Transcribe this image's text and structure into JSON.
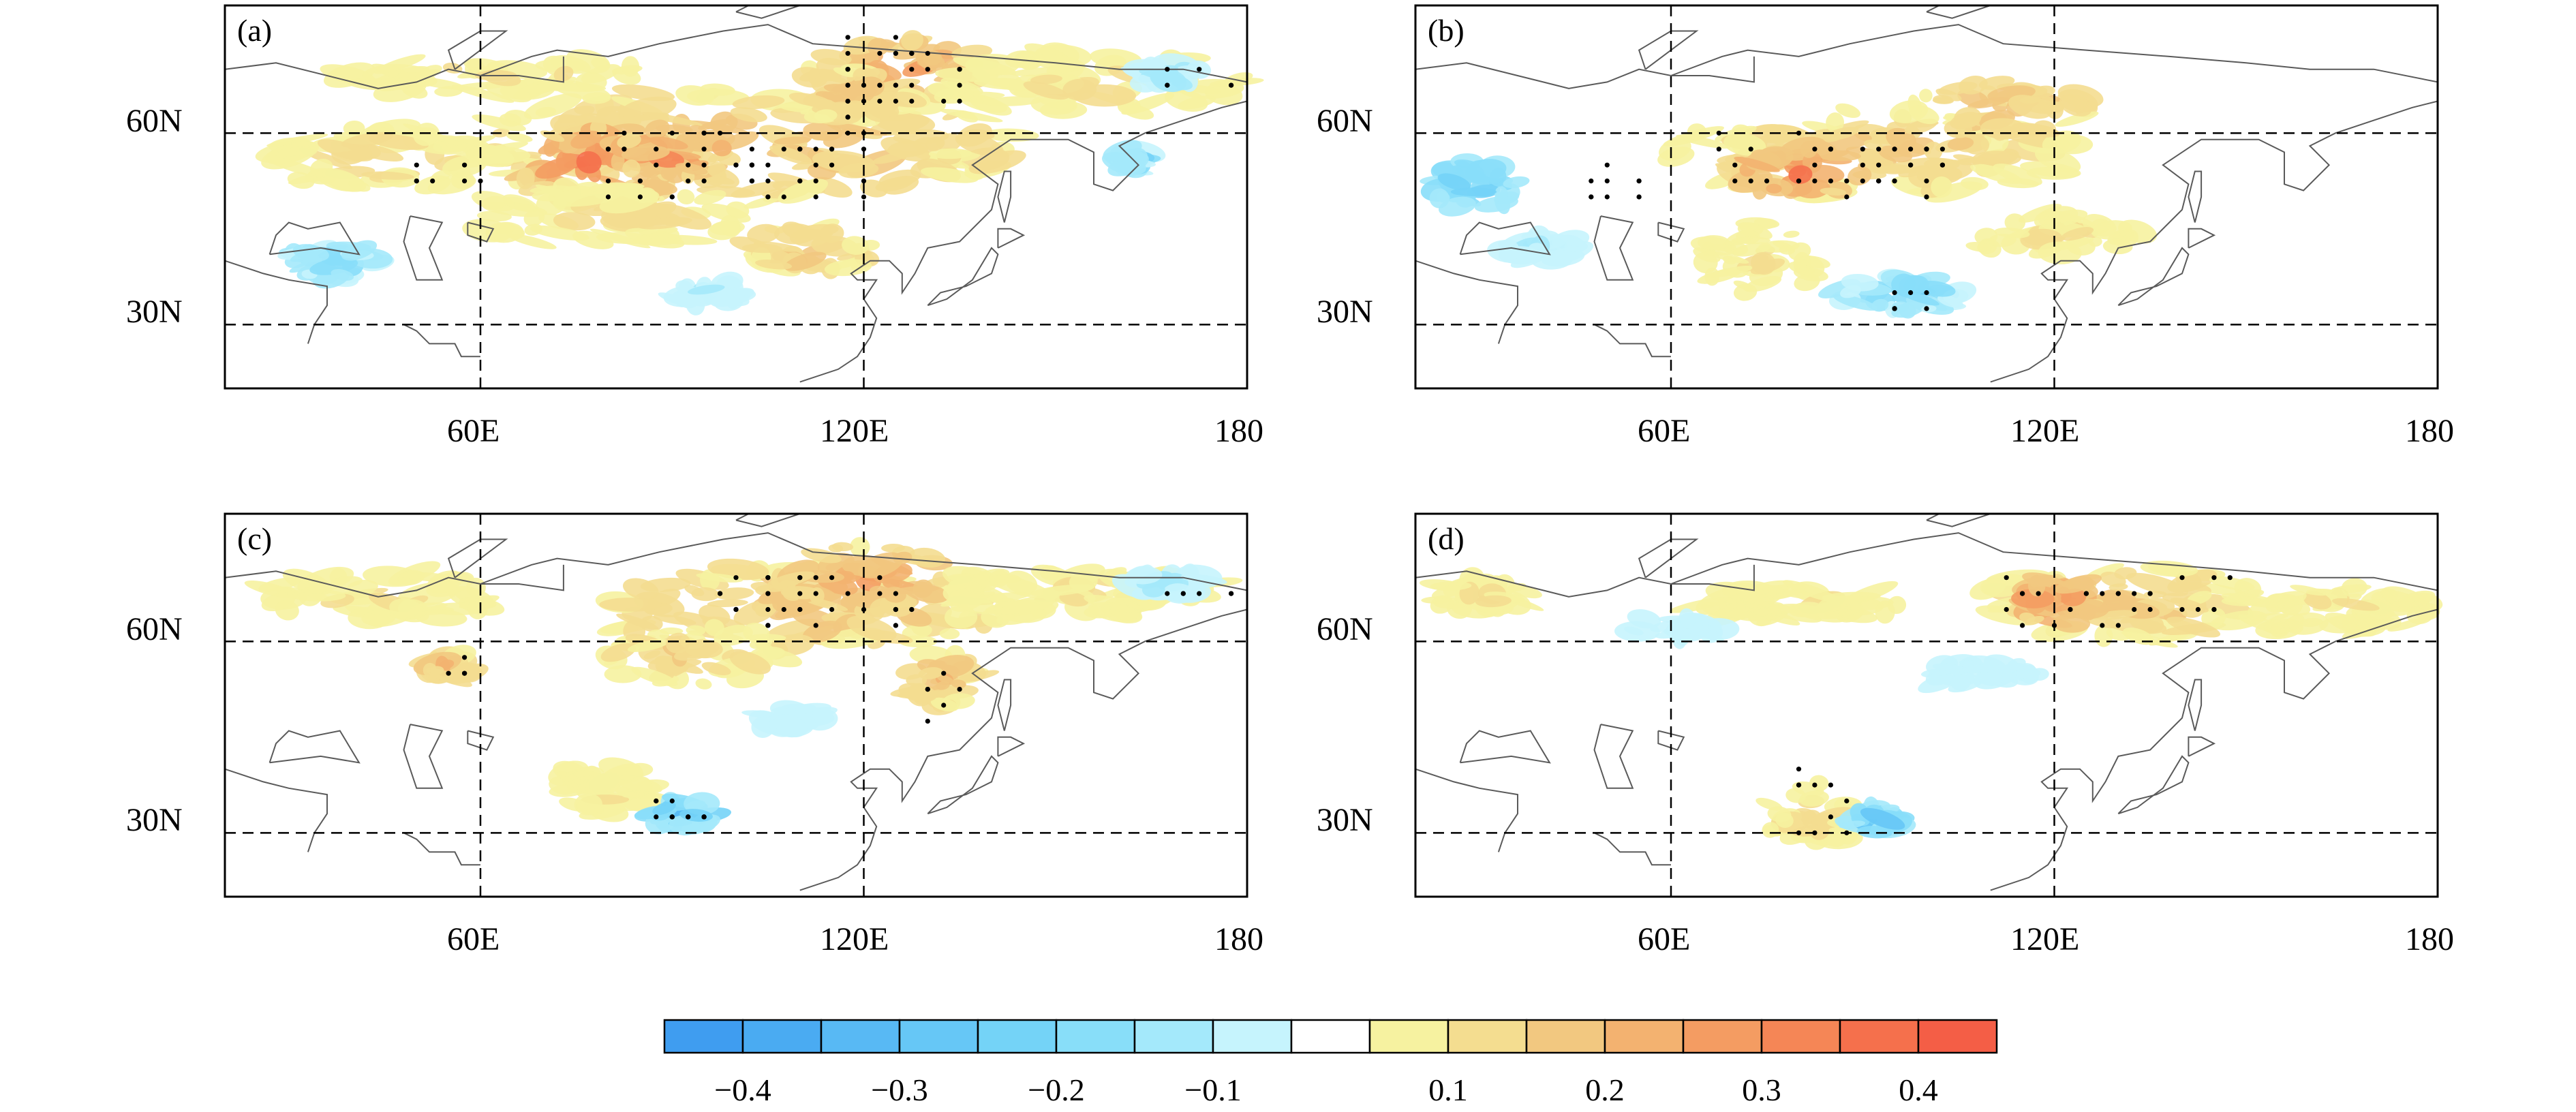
{
  "figure": {
    "type": "map-panels",
    "lat_range": [
      20,
      80
    ],
    "lon_range": [
      20,
      180
    ],
    "x_tick_labels": [
      "60E",
      "120E",
      "180"
    ],
    "y_tick_labels": [
      "60N",
      "30N"
    ]
  },
  "panels": [
    {
      "label": "(a)",
      "warm": [
        {
          "lon": 100,
          "lat": 58,
          "rl": 45,
          "rt": 9,
          "v": 0.2
        },
        {
          "lon": 78,
          "lat": 55,
          "rl": 12,
          "rt": 6,
          "v": 0.36
        },
        {
          "lon": 90,
          "lat": 57,
          "rl": 10,
          "rt": 4,
          "v": 0.33
        },
        {
          "lon": 125,
          "lat": 70,
          "rl": 14,
          "rt": 5,
          "v": 0.27
        },
        {
          "lon": 118,
          "lat": 66,
          "rl": 10,
          "rt": 4,
          "v": 0.22
        },
        {
          "lon": 80,
          "lat": 47,
          "rl": 22,
          "rt": 5,
          "v": 0.14
        },
        {
          "lon": 45,
          "lat": 56,
          "rl": 20,
          "rt": 5,
          "v": 0.14
        },
        {
          "lon": 155,
          "lat": 68,
          "rl": 25,
          "rt": 5,
          "v": 0.12
        },
        {
          "lon": 62,
          "lat": 69,
          "rl": 25,
          "rt": 3,
          "v": 0.12
        },
        {
          "lon": 112,
          "lat": 42,
          "rl": 10,
          "rt": 4,
          "v": 0.2
        }
      ],
      "cool": [
        {
          "lon": 37,
          "lat": 40,
          "rl": 7,
          "rt": 3,
          "v": -0.2
        },
        {
          "lon": 168,
          "lat": 69,
          "rl": 6,
          "rt": 2,
          "v": -0.15
        },
        {
          "lon": 162,
          "lat": 56,
          "rl": 2,
          "rt": 2,
          "v": -0.2
        },
        {
          "lon": 95,
          "lat": 35,
          "rl": 6,
          "rt": 2,
          "v": -0.12
        }
      ],
      "dots": [
        {
          "lon": 100,
          "lat": 55,
          "rl": 22,
          "rt": 5,
          "n": 55
        },
        {
          "lon": 125,
          "lat": 69,
          "rl": 10,
          "rt": 6,
          "n": 35
        },
        {
          "lon": 55,
          "lat": 53,
          "rl": 5,
          "rt": 2,
          "n": 7
        },
        {
          "lon": 172,
          "lat": 68,
          "rl": 6,
          "rt": 1,
          "n": 6
        }
      ]
    },
    {
      "label": "(b)",
      "warm": [
        {
          "lon": 92,
          "lat": 57,
          "rl": 32,
          "rt": 7,
          "v": 0.18
        },
        {
          "lon": 80,
          "lat": 54,
          "rl": 10,
          "rt": 4,
          "v": 0.34
        },
        {
          "lon": 112,
          "lat": 64,
          "rl": 14,
          "rt": 4,
          "v": 0.22
        },
        {
          "lon": 75,
          "lat": 40,
          "rl": 10,
          "rt": 6,
          "v": 0.12
        },
        {
          "lon": 120,
          "lat": 44,
          "rl": 14,
          "rt": 4,
          "v": 0.12
        }
      ],
      "cool": [
        {
          "lon": 29,
          "lat": 52,
          "rl": 7,
          "rt": 4,
          "v": -0.28
        },
        {
          "lon": 96,
          "lat": 35,
          "rl": 10,
          "rt": 3,
          "v": -0.22
        },
        {
          "lon": 40,
          "lat": 42,
          "rl": 6,
          "rt": 2,
          "v": -0.14
        }
      ],
      "dots": [
        {
          "lon": 85,
          "lat": 55,
          "rl": 18,
          "rt": 4,
          "n": 45
        },
        {
          "lon": 52,
          "lat": 52,
          "rl": 4,
          "rt": 2,
          "n": 10
        },
        {
          "lon": 98,
          "lat": 35,
          "rl": 6,
          "rt": 2,
          "n": 7
        }
      ]
    },
    {
      "label": "(c)",
      "warm": [
        {
          "lon": 110,
          "lat": 65,
          "rl": 32,
          "rt": 7,
          "v": 0.2
        },
        {
          "lon": 120,
          "lat": 70,
          "rl": 14,
          "rt": 5,
          "v": 0.27
        },
        {
          "lon": 93,
          "lat": 58,
          "rl": 14,
          "rt": 5,
          "v": 0.16
        },
        {
          "lon": 132,
          "lat": 54,
          "rl": 6,
          "rt": 4,
          "v": 0.22
        },
        {
          "lon": 55,
          "lat": 56,
          "rl": 4,
          "rt": 2,
          "v": 0.22
        },
        {
          "lon": 80,
          "lat": 37,
          "rl": 8,
          "rt": 4,
          "v": 0.12
        },
        {
          "lon": 45,
          "lat": 67,
          "rl": 20,
          "rt": 4,
          "v": 0.12
        },
        {
          "lon": 155,
          "lat": 68,
          "rl": 22,
          "rt": 4,
          "v": 0.12
        }
      ],
      "cool": [
        {
          "lon": 92,
          "lat": 33,
          "rl": 6,
          "rt": 2,
          "v": -0.3
        },
        {
          "lon": 168,
          "lat": 69,
          "rl": 6,
          "rt": 2,
          "v": -0.15
        },
        {
          "lon": 108,
          "lat": 48,
          "rl": 6,
          "rt": 2,
          "v": -0.12
        }
      ],
      "dots": [
        {
          "lon": 112,
          "lat": 66,
          "rl": 16,
          "rt": 5,
          "n": 40
        },
        {
          "lon": 92,
          "lat": 33,
          "rl": 5,
          "rt": 2,
          "n": 14
        },
        {
          "lon": 132,
          "lat": 52,
          "rl": 3,
          "rt": 4,
          "n": 6
        },
        {
          "lon": 172,
          "lat": 68,
          "rl": 6,
          "rt": 1,
          "n": 6
        },
        {
          "lon": 56,
          "lat": 56,
          "rl": 3,
          "rt": 1,
          "n": 4
        }
      ]
    },
    {
      "label": "(d)",
      "warm": [
        {
          "lon": 130,
          "lat": 66,
          "rl": 22,
          "rt": 6,
          "v": 0.18
        },
        {
          "lon": 120,
          "lat": 66,
          "rl": 7,
          "rt": 4,
          "v": 0.32
        },
        {
          "lon": 80,
          "lat": 66,
          "rl": 16,
          "rt": 3,
          "v": 0.12
        },
        {
          "lon": 30,
          "lat": 67,
          "rl": 8,
          "rt": 3,
          "v": 0.14
        },
        {
          "lon": 165,
          "lat": 65,
          "rl": 16,
          "rt": 4,
          "v": 0.12
        },
        {
          "lon": 82,
          "lat": 33,
          "rl": 8,
          "rt": 5,
          "v": 0.14
        }
      ],
      "cool": [
        {
          "lon": 92,
          "lat": 32,
          "rl": 4,
          "rt": 2,
          "v": -0.3
        },
        {
          "lon": 108,
          "lat": 55,
          "rl": 10,
          "rt": 2,
          "v": -0.12
        },
        {
          "lon": 60,
          "lat": 62,
          "rl": 8,
          "rt": 2,
          "v": -0.1
        }
      ],
      "dots": [
        {
          "lon": 125,
          "lat": 66,
          "rl": 12,
          "rt": 4,
          "n": 18
        },
        {
          "lon": 140,
          "lat": 67,
          "rl": 8,
          "rt": 3,
          "n": 10
        },
        {
          "lon": 82,
          "lat": 34,
          "rl": 6,
          "rt": 5,
          "n": 10
        }
      ]
    }
  ],
  "colorbar": {
    "levels": [
      -0.4,
      -0.35,
      -0.3,
      -0.25,
      -0.2,
      -0.15,
      -0.1,
      -0.05,
      0.05,
      0.1,
      0.15,
      0.2,
      0.25,
      0.3,
      0.35,
      0.4
    ],
    "colors": [
      "#3f9df0",
      "#4aabf2",
      "#58b9f4",
      "#66c7f6",
      "#74d3f7",
      "#88def9",
      "#a4e9fb",
      "#c6f4fd",
      "#ffffff",
      "#f6f2a0",
      "#f4dd90",
      "#f2c880",
      "#f3b270",
      "#f49c62",
      "#f58656",
      "#f5704c",
      "#f45e46"
    ],
    "labels": [
      "−0.4",
      "−0.3",
      "−0.2",
      "−0.1",
      "0.1",
      "0.2",
      "0.3",
      "0.4"
    ]
  }
}
